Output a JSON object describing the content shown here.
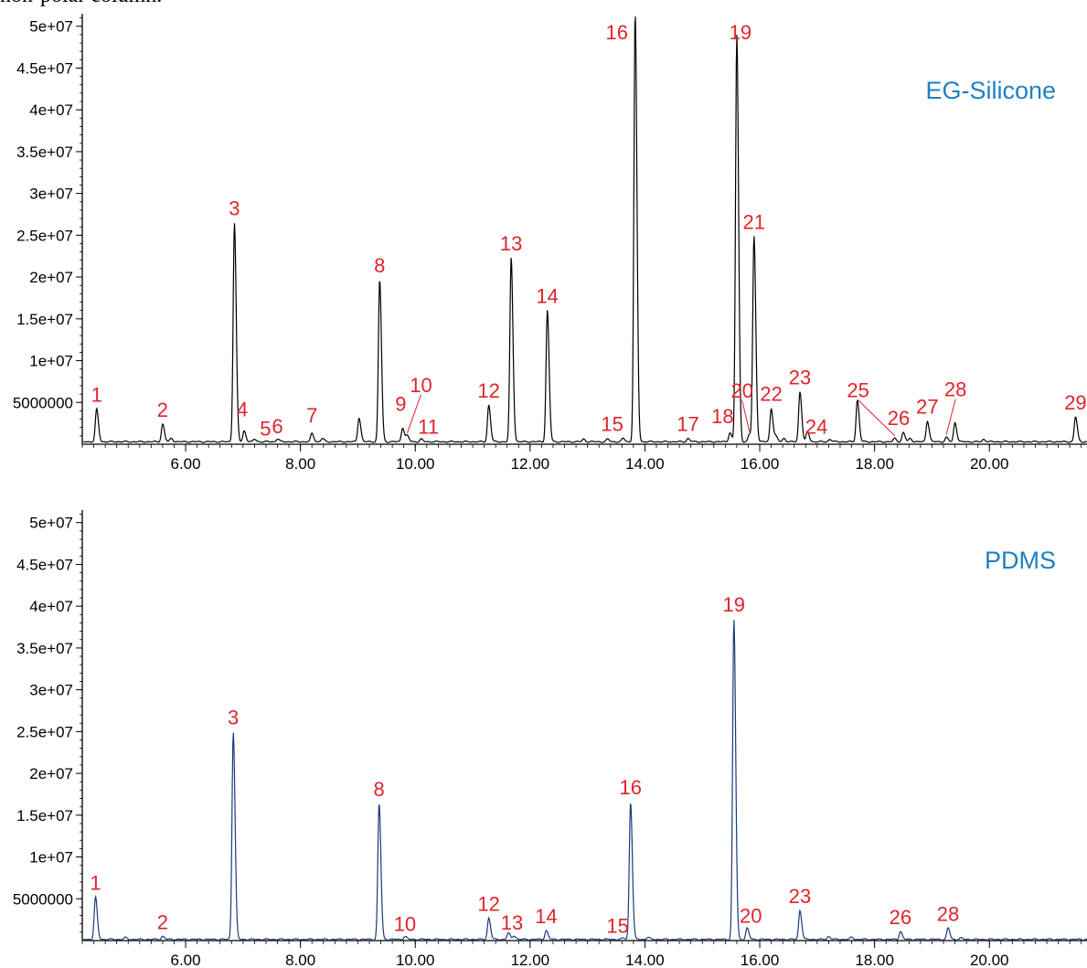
{
  "caption": "non-polar column.",
  "colors": {
    "trace_top": "#000000",
    "trace_bottom": "#1b3a7a",
    "peak_label": "#e0242b",
    "panel_title": "#1f7fc4",
    "axis": "#000000"
  },
  "chart_data": [
    {
      "type": "line",
      "title": "EG-Silicone",
      "xlabel": "",
      "ylabel": "",
      "xlim": [
        4.2,
        21.7
      ],
      "ylim": [
        0,
        51500000
      ],
      "x_ticks": [
        6,
        8,
        10,
        12,
        14,
        16,
        18,
        20
      ],
      "x_tick_labels": [
        "6.00",
        "8.00",
        "10.00",
        "12.00",
        "14.00",
        "16.00",
        "18.00",
        "20.00"
      ],
      "y_ticks": [
        5000000,
        10000000,
        15000000,
        20000000,
        25000000,
        30000000,
        35000000,
        40000000,
        45000000,
        50000000
      ],
      "y_tick_labels": [
        "5000000",
        "1e+07",
        "1.5e+07",
        "2e+07",
        "2.5e+07",
        "3e+07",
        "3.5e+07",
        "4e+07",
        "4.5e+07",
        "5e+07"
      ],
      "baseline": 300000,
      "peaks": [
        {
          "label": "1",
          "x": 4.45,
          "y": 4200000
        },
        {
          "label": "2",
          "x": 5.6,
          "y": 2400000
        },
        {
          "label": "",
          "x": 5.75,
          "y": 700000
        },
        {
          "label": "3",
          "x": 6.85,
          "y": 26500000
        },
        {
          "label": "4",
          "x": 7.02,
          "y": 1600000
        },
        {
          "label": "5",
          "x": 7.2,
          "y": 600000
        },
        {
          "label": "6",
          "x": 7.6,
          "y": 650000
        },
        {
          "label": "7",
          "x": 8.2,
          "y": 1300000
        },
        {
          "label": "",
          "x": 8.38,
          "y": 700000
        },
        {
          "label": "",
          "x": 9.02,
          "y": 3200000
        },
        {
          "label": "8",
          "x": 9.38,
          "y": 19700000
        },
        {
          "label": "9",
          "x": 9.78,
          "y": 2000000
        },
        {
          "label": "10",
          "x": 9.86,
          "y": 1000000
        },
        {
          "label": "11",
          "x": 10.1,
          "y": 600000
        },
        {
          "label": "12",
          "x": 11.28,
          "y": 4700000
        },
        {
          "label": "13",
          "x": 11.67,
          "y": 22300000
        },
        {
          "label": "14",
          "x": 12.3,
          "y": 16000000
        },
        {
          "label": "",
          "x": 12.93,
          "y": 600000
        },
        {
          "label": "",
          "x": 13.35,
          "y": 600000
        },
        {
          "label": "15",
          "x": 13.62,
          "y": 700000
        },
        {
          "label": "16",
          "x": 13.83,
          "y": 51500000
        },
        {
          "label": "17",
          "x": 14.75,
          "y": 700000
        },
        {
          "label": "18",
          "x": 15.48,
          "y": 1400000
        },
        {
          "label": "19",
          "x": 15.6,
          "y": 49000000
        },
        {
          "label": "20",
          "x": 15.82,
          "y": 1200000
        },
        {
          "label": "21",
          "x": 15.9,
          "y": 24900000
        },
        {
          "label": "22",
          "x": 16.2,
          "y": 4300000
        },
        {
          "label": "",
          "x": 16.28,
          "y": 900000
        },
        {
          "label": "",
          "x": 16.42,
          "y": 700000
        },
        {
          "label": "23",
          "x": 16.7,
          "y": 6300000
        },
        {
          "label": "24",
          "x": 16.83,
          "y": 1500000
        },
        {
          "label": "",
          "x": 17.22,
          "y": 600000
        },
        {
          "label": "",
          "x": 17.7,
          "y": 5300000
        },
        {
          "label": "25",
          "x": 18.35,
          "y": 700000
        },
        {
          "label": "26",
          "x": 18.5,
          "y": 1400000
        },
        {
          "label": "",
          "x": 18.62,
          "y": 700000
        },
        {
          "label": "27",
          "x": 18.92,
          "y": 2800000
        },
        {
          "label": "28",
          "x": 19.25,
          "y": 800000
        },
        {
          "label": "",
          "x": 19.4,
          "y": 2600000
        },
        {
          "label": "",
          "x": 19.9,
          "y": 600000
        },
        {
          "label": "29",
          "x": 21.5,
          "y": 3300000
        }
      ]
    },
    {
      "type": "line",
      "title": "PDMS",
      "xlabel": "",
      "ylabel": "",
      "xlim": [
        4.2,
        21.7
      ],
      "ylim": [
        0,
        51500000
      ],
      "x_ticks": [
        6,
        8,
        10,
        12,
        14,
        16,
        18,
        20
      ],
      "x_tick_labels": [
        "6.00",
        "8.00",
        "10.00",
        "12.00",
        "14.00",
        "16.00",
        "18.00",
        "20.00"
      ],
      "y_ticks": [
        5000000,
        10000000,
        15000000,
        20000000,
        25000000,
        30000000,
        35000000,
        40000000,
        45000000,
        50000000
      ],
      "y_tick_labels": [
        "5000000",
        "1e+07",
        "1.5e+07",
        "2e+07",
        "2.5e+07",
        "3e+07",
        "3.5e+07",
        "4e+07",
        "4.5e+07",
        "5e+07"
      ],
      "baseline": 150000,
      "peaks": [
        {
          "label": "1",
          "x": 4.43,
          "y": 5200000
        },
        {
          "label": "",
          "x": 4.95,
          "y": 350000
        },
        {
          "label": "2",
          "x": 5.6,
          "y": 500000
        },
        {
          "label": "3",
          "x": 6.83,
          "y": 25000000
        },
        {
          "label": "8",
          "x": 9.37,
          "y": 16400000
        },
        {
          "label": "10",
          "x": 9.82,
          "y": 500000
        },
        {
          "label": "12",
          "x": 11.28,
          "y": 2700000
        },
        {
          "label": "13",
          "x": 11.62,
          "y": 900000
        },
        {
          "label": "",
          "x": 11.72,
          "y": 600000
        },
        {
          "label": "14",
          "x": 12.28,
          "y": 1200000
        },
        {
          "label": "15",
          "x": 13.62,
          "y": 300000
        },
        {
          "label": "16",
          "x": 13.75,
          "y": 16600000
        },
        {
          "label": "",
          "x": 14.05,
          "y": 400000
        },
        {
          "label": "19",
          "x": 15.55,
          "y": 38500000
        },
        {
          "label": "20",
          "x": 15.78,
          "y": 1500000
        },
        {
          "label": "23",
          "x": 16.7,
          "y": 3600000
        },
        {
          "label": "",
          "x": 17.2,
          "y": 500000
        },
        {
          "label": "",
          "x": 17.6,
          "y": 400000
        },
        {
          "label": "26",
          "x": 18.45,
          "y": 1100000
        },
        {
          "label": "28",
          "x": 19.28,
          "y": 1500000
        },
        {
          "label": "",
          "x": 19.5,
          "y": 300000
        }
      ]
    }
  ]
}
